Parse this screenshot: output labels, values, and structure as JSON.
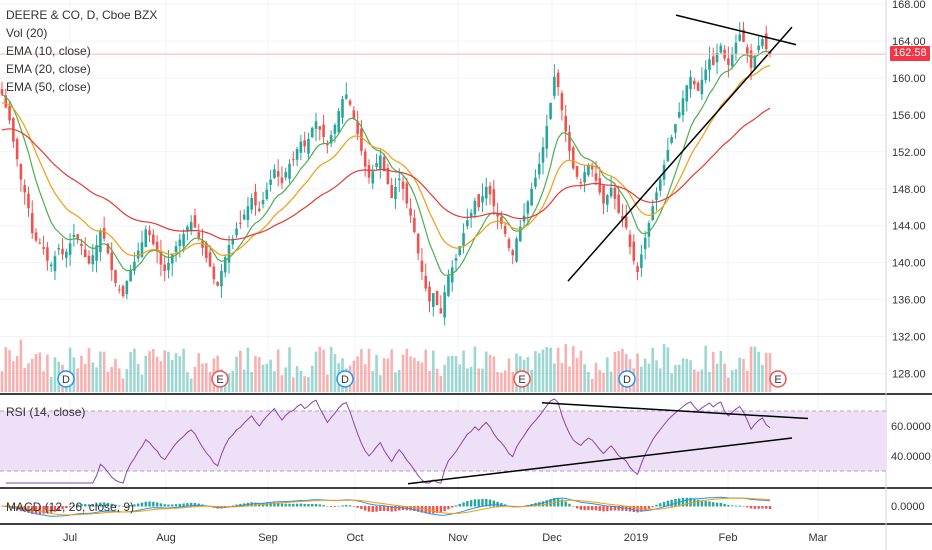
{
  "legend": {
    "title": "DEERE & CO, D, Cboe BZX",
    "lines": [
      "Vol (20)",
      "EMA (10, close)",
      "EMA (20, close)",
      "EMA (50, close)"
    ]
  },
  "rsi_label": "RSI (14, close)",
  "macd_label": "MACD (12, 26, close, 9)",
  "last_price": "162.58",
  "colors": {
    "up": "#26a69a",
    "down": "#ef5350",
    "ema10": "#4caf50",
    "ema20": "#f39c12",
    "ema50": "#e53935",
    "rsi_line": "#8e44ad",
    "rsi_band": "#ede0f7",
    "trendline": "#000000",
    "badge": "#f23645"
  },
  "chart_data": {
    "type": "candlestick",
    "price_axis": {
      "ylim": [
        126,
        168
      ],
      "ticks": [
        "128.00",
        "132.00",
        "136.00",
        "140.00",
        "144.00",
        "148.00",
        "152.00",
        "156.00",
        "160.00",
        "164.00",
        "168.00"
      ]
    },
    "rsi_axis": {
      "ylim": [
        20,
        80
      ],
      "ticks": [
        "40.0000",
        "60.0000"
      ]
    },
    "macd_axis": {
      "ticks": [
        "0.0000"
      ]
    },
    "x_axis": {
      "ticks": [
        "Jul",
        "Aug",
        "Sep",
        "Oct",
        "Nov",
        "Dec",
        "2019",
        "Feb",
        "Mar"
      ]
    },
    "events": [
      "D",
      "E",
      "D",
      "E",
      "D",
      "E"
    ],
    "closes": [
      158.2,
      156.8,
      155.4,
      153.1,
      151.2,
      149.0,
      147.6,
      145.9,
      143.2,
      142.4,
      142.1,
      141.5,
      140.2,
      139.8,
      140.7,
      141.6,
      140.9,
      141.2,
      142.1,
      143.0,
      142.5,
      141.8,
      140.6,
      139.9,
      140.8,
      141.9,
      143.5,
      142.6,
      141.0,
      139.2,
      137.8,
      137.0,
      136.4,
      138.0,
      139.2,
      140.1,
      141.3,
      142.2,
      143.6,
      143.0,
      142.0,
      141.2,
      139.8,
      139.1,
      140.0,
      140.9,
      141.8,
      142.5,
      143.1,
      143.9,
      144.4,
      143.8,
      142.7,
      141.6,
      140.5,
      139.6,
      138.2,
      137.5,
      139.1,
      140.6,
      141.9,
      142.6,
      143.7,
      144.2,
      145.2,
      146.1,
      147.0,
      146.2,
      145.6,
      146.8,
      147.9,
      149.0,
      150.1,
      149.3,
      148.6,
      149.8,
      150.7,
      151.2,
      152.3,
      153.1,
      152.6,
      153.4,
      154.6,
      155.3,
      154.4,
      153.6,
      152.7,
      153.8,
      154.9,
      156.4,
      157.7,
      158.2,
      157.1,
      155.6,
      153.9,
      152.1,
      150.4,
      149.2,
      149.9,
      150.8,
      151.6,
      149.9,
      148.5,
      147.0,
      148.2,
      149.1,
      148.0,
      146.4,
      145.1,
      143.3,
      141.0,
      139.0,
      137.2,
      135.8,
      136.7,
      135.4,
      134.5,
      136.8,
      138.6,
      139.5,
      140.5,
      141.8,
      143.2,
      144.6,
      145.4,
      146.7,
      146.0,
      147.2,
      148.2,
      147.4,
      146.1,
      145.0,
      144.2,
      143.1,
      141.6,
      140.8,
      142.6,
      143.9,
      145.1,
      146.6,
      148.0,
      149.2,
      150.7,
      152.5,
      154.8,
      157.3,
      160.1,
      159.0,
      156.5,
      154.2,
      152.1,
      150.2,
      149.3,
      148.6,
      149.8,
      150.6,
      150.1,
      148.9,
      147.6,
      146.4,
      147.3,
      148.1,
      146.9,
      145.4,
      144.7,
      143.8,
      141.7,
      140.2,
      139.0,
      140.9,
      142.7,
      144.3,
      146.1,
      147.6,
      149.0,
      150.6,
      152.2,
      153.6,
      155.0,
      156.3,
      157.8,
      159.2,
      160.1,
      159.3,
      158.6,
      159.8,
      160.9,
      162.0,
      161.4,
      162.7,
      163.5,
      162.1,
      161.4,
      162.6,
      163.8,
      164.7,
      163.9,
      162.6,
      161.1,
      162.4,
      163.5,
      164.2,
      163.1,
      162.58
    ],
    "series": [
      {
        "name": "EMA (10, close)",
        "period": 10
      },
      {
        "name": "EMA (20, close)",
        "period": 20
      },
      {
        "name": "EMA (50, close)",
        "period": 50
      }
    ],
    "trendlines": [
      {
        "pane": "price",
        "from": [
          "2018-12-10",
          138.0
        ],
        "to": [
          "2019-02-18",
          165.5
        ]
      },
      {
        "pane": "price",
        "from": [
          "2019-01-16",
          166.8
        ],
        "to": [
          "2019-02-20",
          163.6
        ]
      },
      {
        "pane": "rsi",
        "from": [
          "2018-11-28",
          75.5
        ],
        "to": [
          "2019-02-26",
          65.0
        ]
      },
      {
        "pane": "rsi",
        "from": [
          "2018-10-29",
          21.5
        ],
        "to": [
          "2019-02-26",
          52.0
        ]
      }
    ]
  }
}
